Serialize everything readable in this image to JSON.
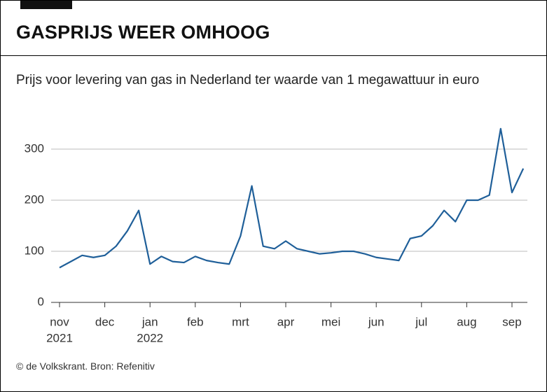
{
  "chart_data": {
    "type": "line",
    "title": "GASPRIJS WEER OMHOOG",
    "subtitle": "Prijs voor levering van gas in Nederland ter waarde van 1 megawattuur in euro",
    "source": "© de Volkskrant. Bron: Refenitiv",
    "categories": [
      "nov",
      null,
      null,
      null,
      "dec",
      null,
      null,
      null,
      "jan",
      null,
      null,
      null,
      "feb",
      null,
      null,
      null,
      "mrt",
      null,
      null,
      null,
      "apr",
      null,
      null,
      null,
      "mei",
      null,
      null,
      null,
      "jun",
      null,
      null,
      null,
      "jul",
      null,
      null,
      null,
      "aug",
      null,
      null,
      null,
      "sep",
      null
    ],
    "category_years": [
      "2021",
      null,
      null,
      null,
      null,
      null,
      null,
      null,
      "2022",
      null,
      null,
      null,
      null,
      null,
      null,
      null,
      null,
      null,
      null,
      null,
      null,
      null,
      null,
      null,
      null,
      null,
      null,
      null,
      null,
      null,
      null,
      null,
      null,
      null,
      null,
      null,
      null,
      null,
      null,
      null,
      null,
      null
    ],
    "series": [
      {
        "name": "Gasprijs",
        "color": "#1f5f99",
        "values": [
          68,
          80,
          92,
          88,
          92,
          110,
          140,
          180,
          75,
          90,
          80,
          78,
          90,
          82,
          78,
          75,
          130,
          228,
          110,
          105,
          120,
          105,
          100,
          95,
          97,
          100,
          100,
          95,
          88,
          85,
          82,
          125,
          130,
          150,
          180,
          158,
          200,
          200,
          210,
          340,
          215,
          262
        ]
      }
    ],
    "ylim": [
      0,
      350
    ],
    "yticks": [
      0,
      100,
      200,
      300
    ],
    "grid": true
  }
}
